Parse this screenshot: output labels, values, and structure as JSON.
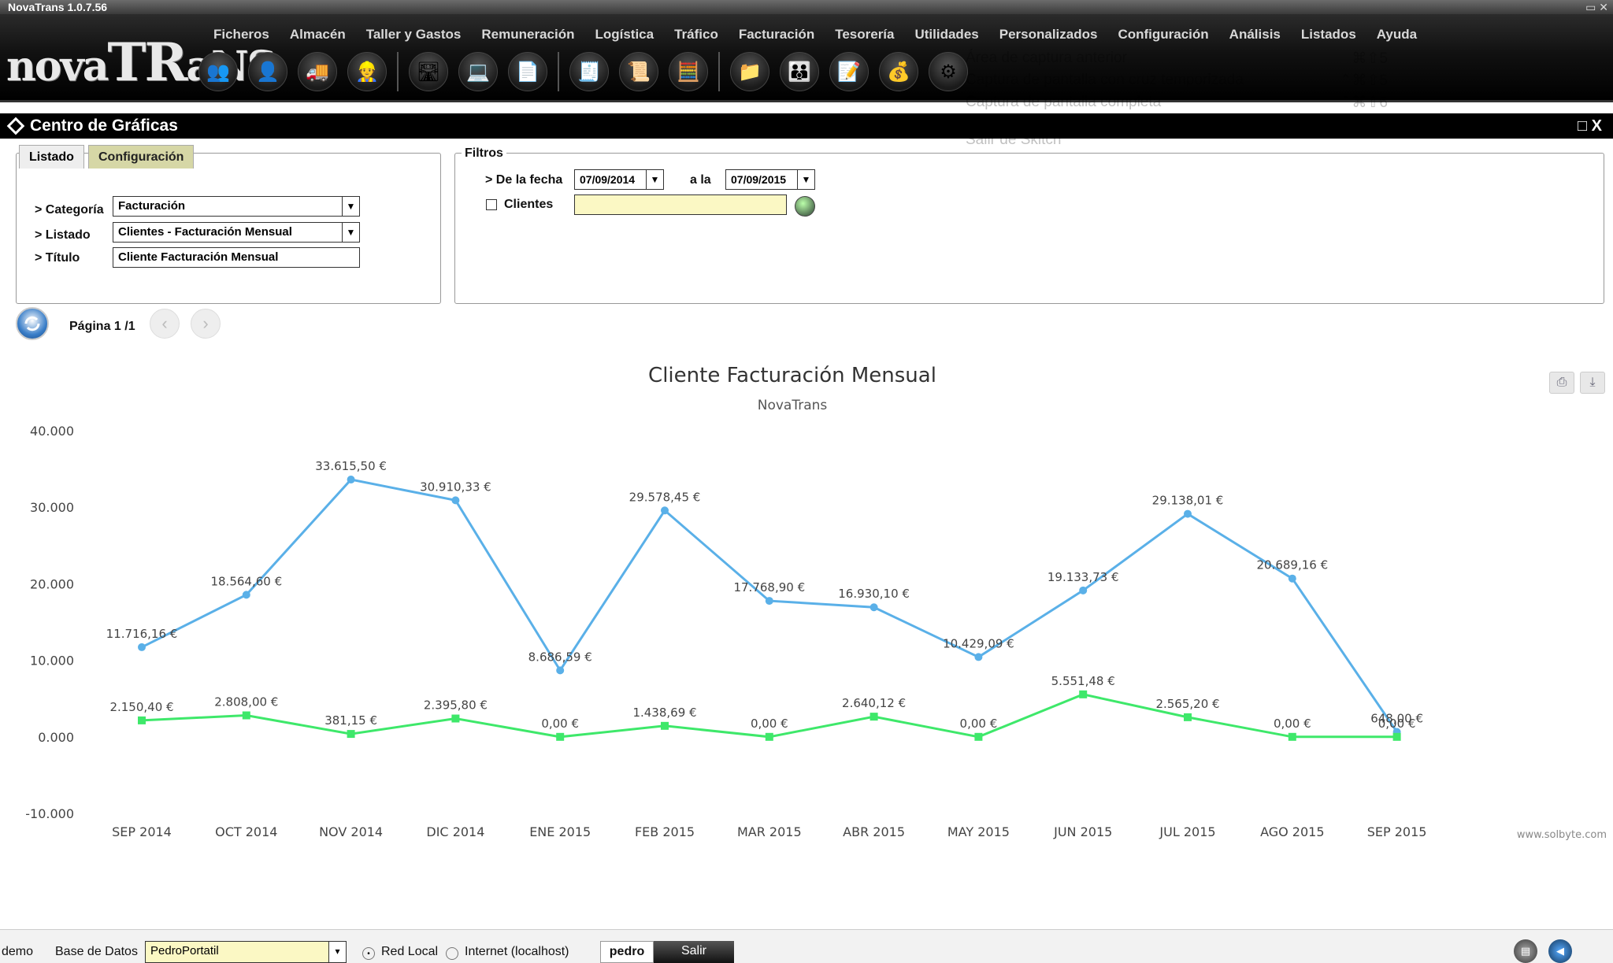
{
  "app": {
    "title": "NovaTrans 1.0.7.56",
    "logo": "novaTRaNS"
  },
  "menu": [
    "Ficheros",
    "Almacén",
    "Taller y Gastos",
    "Remuneración",
    "Logística",
    "Tráfico",
    "Facturación",
    "Tesorería",
    "Utilidades",
    "Personalizados",
    "Configuración",
    "Análisis",
    "Listados",
    "Ayuda"
  ],
  "toolbar_icons": [
    "clients-icon",
    "user-icon",
    "truck-icon",
    "driver-icon",
    "road-icon",
    "laptop-icon",
    "document-icon",
    "invoice-icon",
    "certificate-icon",
    "calculator-icon",
    "folder-icon",
    "group-icon",
    "notes-icon",
    "money-icon",
    "settings-icon"
  ],
  "overlay_menu": [
    "Área de captura anterior",
    "Captura de pantalla con cruz temporizada",
    "Captura de pantalla completa",
    "Salir de Skitch"
  ],
  "overlay_shortcuts": [
    "⌘⇧5",
    "⌃⌘⇧5",
    "⌃⌘⇧6"
  ],
  "panel": {
    "title": "Centro de Gráficas"
  },
  "tabs": [
    "Listado",
    "Configuración"
  ],
  "config": {
    "categoria_label": "> Categoría",
    "categoria": "Facturación",
    "listado_label": "> Listado",
    "listado": "Clientes - Facturación Mensual",
    "titulo_label": "> Título",
    "titulo": "Cliente Facturación Mensual"
  },
  "filtros": {
    "legend": "Filtros",
    "desde_label": "> De la fecha",
    "desde": "07/09/2014",
    "hasta_label": "a la",
    "hasta": "07/09/2015",
    "clientes_label": "Clientes",
    "clientes": ""
  },
  "pager": {
    "label": "Página 1 /1"
  },
  "chart_data": {
    "type": "line",
    "title": "Cliente Facturación Mensual",
    "subtitle": "NovaTrans",
    "categories": [
      "SEP 2014",
      "OCT 2014",
      "NOV 2014",
      "DIC 2014",
      "ENE 2015",
      "FEB 2015",
      "MAR 2015",
      "ABR 2015",
      "MAY 2015",
      "JUN 2015",
      "JUL 2015",
      "AGO 2015",
      "SEP 2015"
    ],
    "ylim": [
      -10000,
      40000
    ],
    "yticks": [
      "40.000",
      "30.000",
      "20.000",
      "10.000",
      "0.000",
      "-10.000"
    ],
    "series": [
      {
        "color": "#5ab0e8",
        "values": [
          11716.16,
          18564.6,
          33615.5,
          30910.33,
          8686.59,
          29578.45,
          17768.9,
          16930.1,
          10429.09,
          19133.73,
          29138.01,
          20689.16,
          648.0
        ],
        "labels": [
          "11.716,16 €",
          "18.564,60 €",
          "33.615,50 €",
          "30.910,33 €",
          "8.686,59 €",
          "29.578,45 €",
          "17.768,90 €",
          "16.930,10 €",
          "10.429,09 €",
          "19.133,73 €",
          "29.138,01 €",
          "20.689,16 €",
          "648,00 €"
        ]
      },
      {
        "color": "#3ee86a",
        "values": [
          2150.4,
          2808.0,
          381.15,
          2395.8,
          0,
          1438.69,
          0,
          2640.12,
          0,
          5551.48,
          2565.2,
          0,
          0
        ],
        "labels": [
          "2.150,40 €",
          "2.808,00 €",
          "381,15 €",
          "2.395,80 €",
          "0,00 €",
          "1.438,69 €",
          "0,00 €",
          "2.640,12 €",
          "0,00 €",
          "5.551,48 €",
          "2.565,20 €",
          "0,00 €",
          "0,00 €"
        ]
      }
    ],
    "credit": "www.solbyte.com"
  },
  "status": {
    "user_mode": "demo",
    "db_label": "Base de Datos",
    "db": "PedroPortatil",
    "red_local": "Red Local",
    "internet": "Internet (localhost)",
    "user": "pedro",
    "salir": "Salir"
  }
}
